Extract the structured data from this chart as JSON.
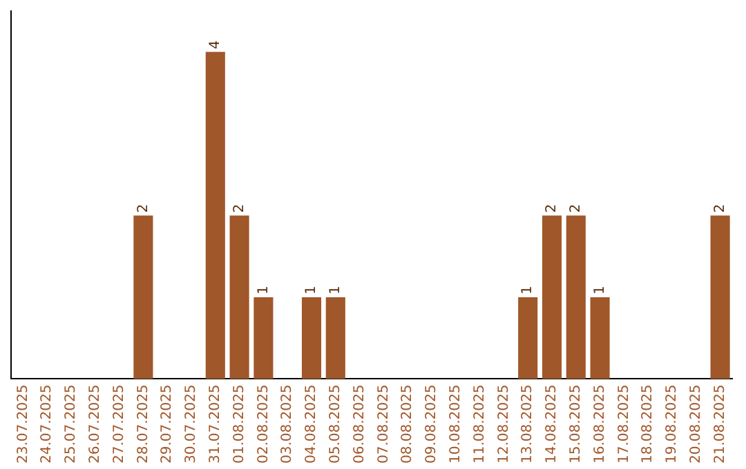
{
  "chart_data": {
    "type": "bar",
    "categories": [
      "23.07.2025",
      "24.07.2025",
      "25.07.2025",
      "26.07.2025",
      "27.07.2025",
      "28.07.2025",
      "29.07.2025",
      "30.07.2025",
      "31.07.2025",
      "01.08.2025",
      "02.08.2025",
      "03.08.2025",
      "04.08.2025",
      "05.08.2025",
      "06.08.2025",
      "07.08.2025",
      "08.08.2025",
      "09.08.2025",
      "10.08.2025",
      "11.08.2025",
      "12.08.2025",
      "13.08.2025",
      "14.08.2025",
      "15.08.2025",
      "16.08.2025",
      "17.08.2025",
      "18.08.2025",
      "19.08.2025",
      "20.08.2025",
      "21.08.2025"
    ],
    "values": [
      null,
      null,
      null,
      null,
      null,
      2,
      null,
      null,
      4,
      2,
      1,
      null,
      1,
      1,
      null,
      null,
      null,
      null,
      null,
      null,
      null,
      1,
      2,
      2,
      1,
      null,
      null,
      null,
      null,
      2
    ],
    "color": "#a0572a",
    "data_labels": true,
    "grid": false,
    "legend": false
  }
}
